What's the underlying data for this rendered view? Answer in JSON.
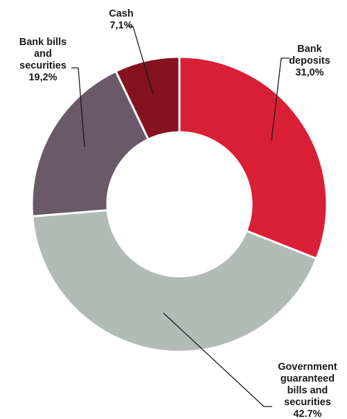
{
  "chart_data": {
    "type": "pie",
    "subtype": "donut",
    "title": "",
    "legend": "none",
    "slices": [
      {
        "label": [
          "Bank",
          "deposits"
        ],
        "value_text": "31,0%",
        "value": 31.0,
        "color": "#d91f36"
      },
      {
        "label": [
          "Government",
          "guaranteed",
          "bills and",
          "securities"
        ],
        "value_text": "42.7%",
        "value": 42.7,
        "color": "#b1bcb7"
      },
      {
        "label": [
          "Bank bills",
          "and",
          "securities"
        ],
        "value_text": "19,2%",
        "value": 19.2,
        "color": "#6a5968"
      },
      {
        "label": [
          "Cash"
        ],
        "value_text": "7,1%",
        "value": 7.1,
        "color": "#85121f"
      }
    ]
  }
}
